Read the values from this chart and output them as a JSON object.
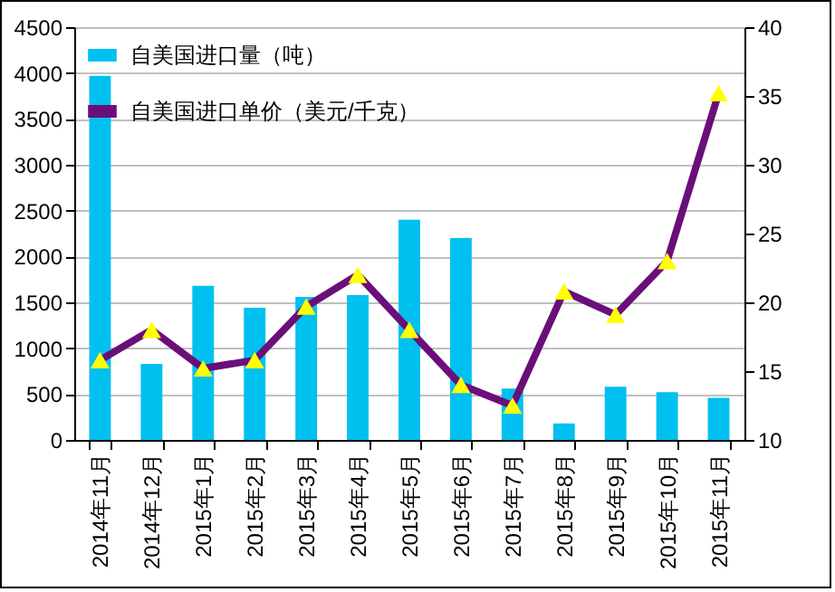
{
  "chart_data": {
    "type": "bar",
    "categories": [
      "2014年11月",
      "2014年12月",
      "2015年1月",
      "2015年2月",
      "2015年3月",
      "2015年4月",
      "2015年5月",
      "2015年6月",
      "2015年7月",
      "2015年8月",
      "2015年9月",
      "2015年10月",
      "2015年11月"
    ],
    "series": [
      {
        "name": "自美国进口量（吨）",
        "color": "#00c0f0",
        "values": [
          3970,
          830,
          1680,
          1440,
          1560,
          1580,
          2400,
          2200,
          560,
          180,
          580,
          520,
          460
        ]
      },
      {
        "name": "自美国进口单价（美元/千克）",
        "type": "line",
        "axis": "y2",
        "color": "#6a0f7a",
        "marker": "triangle",
        "values": [
          15.8,
          18,
          15.2,
          15.8,
          19.7,
          22,
          18,
          14,
          12.5,
          20.8,
          19.1,
          23,
          35.2
        ]
      }
    ],
    "ylim": [
      0,
      4500
    ],
    "yticks": [
      0,
      500,
      1000,
      1500,
      2000,
      2500,
      3000,
      3500,
      4000,
      4500
    ],
    "y2lim": [
      10,
      40
    ],
    "y2ticks": [
      10,
      15,
      20,
      25,
      30,
      35,
      40
    ],
    "grid": "y",
    "legend": "top left"
  }
}
